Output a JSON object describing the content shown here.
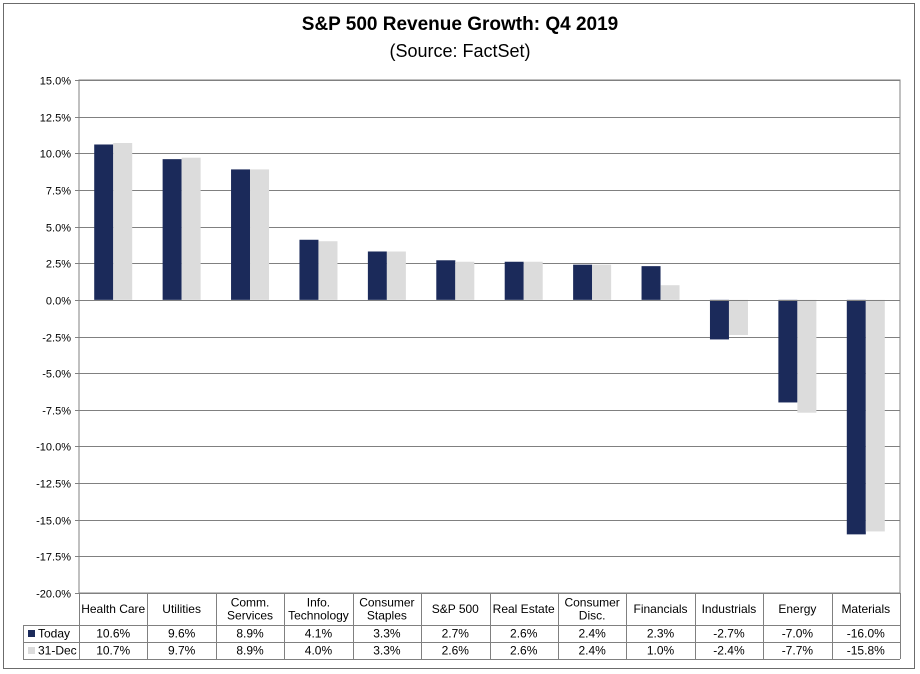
{
  "chart_data": {
    "type": "bar",
    "title": "S&P 500 Revenue Growth: Q4 2019",
    "subtitle": "(Source: FactSet)",
    "categories": [
      [
        "Health Care"
      ],
      [
        "Utilities"
      ],
      [
        "Comm.",
        "Services"
      ],
      [
        "Info.",
        "Technology"
      ],
      [
        "Consumer",
        "Staples"
      ],
      [
        "S&P 500"
      ],
      [
        "Real Estate"
      ],
      [
        "Consumer",
        "Disc."
      ],
      [
        "Financials"
      ],
      [
        "Industrials"
      ],
      [
        "Energy"
      ],
      [
        "Materials"
      ]
    ],
    "series": [
      {
        "name": "Today",
        "color": "#1b2a5a",
        "values": [
          10.6,
          9.6,
          8.9,
          4.1,
          3.3,
          2.7,
          2.6,
          2.4,
          2.3,
          -2.7,
          -7.0,
          -16.0
        ],
        "labels": [
          "10.6%",
          "9.6%",
          "8.9%",
          "4.1%",
          "3.3%",
          "2.7%",
          "2.6%",
          "2.4%",
          "2.3%",
          "-2.7%",
          "-7.0%",
          "-16.0%"
        ]
      },
      {
        "name": "31-Dec",
        "color": "#dcdcdc",
        "values": [
          10.7,
          9.7,
          8.9,
          4.0,
          3.3,
          2.6,
          2.6,
          2.4,
          1.0,
          -2.4,
          -7.7,
          -15.8
        ],
        "labels": [
          "10.7%",
          "9.7%",
          "8.9%",
          "4.0%",
          "3.3%",
          "2.6%",
          "2.6%",
          "2.4%",
          "1.0%",
          "-2.4%",
          "-7.7%",
          "-15.8%"
        ]
      }
    ],
    "ylim": [
      -20,
      15
    ],
    "yticks": [
      15,
      12.5,
      10,
      7.5,
      5,
      2.5,
      0,
      -2.5,
      -5,
      -7.5,
      -10,
      -12.5,
      -15,
      -17.5,
      -20
    ],
    "ytick_labels": [
      "15.0%",
      "12.5%",
      "10.0%",
      "7.5%",
      "5.0%",
      "2.5%",
      "0.0%",
      "-2.5%",
      "-5.0%",
      "-7.5%",
      "-10.0%",
      "-12.5%",
      "-15.0%",
      "-17.5%",
      "-20.0%"
    ],
    "grid": true,
    "legend": "data-table"
  }
}
